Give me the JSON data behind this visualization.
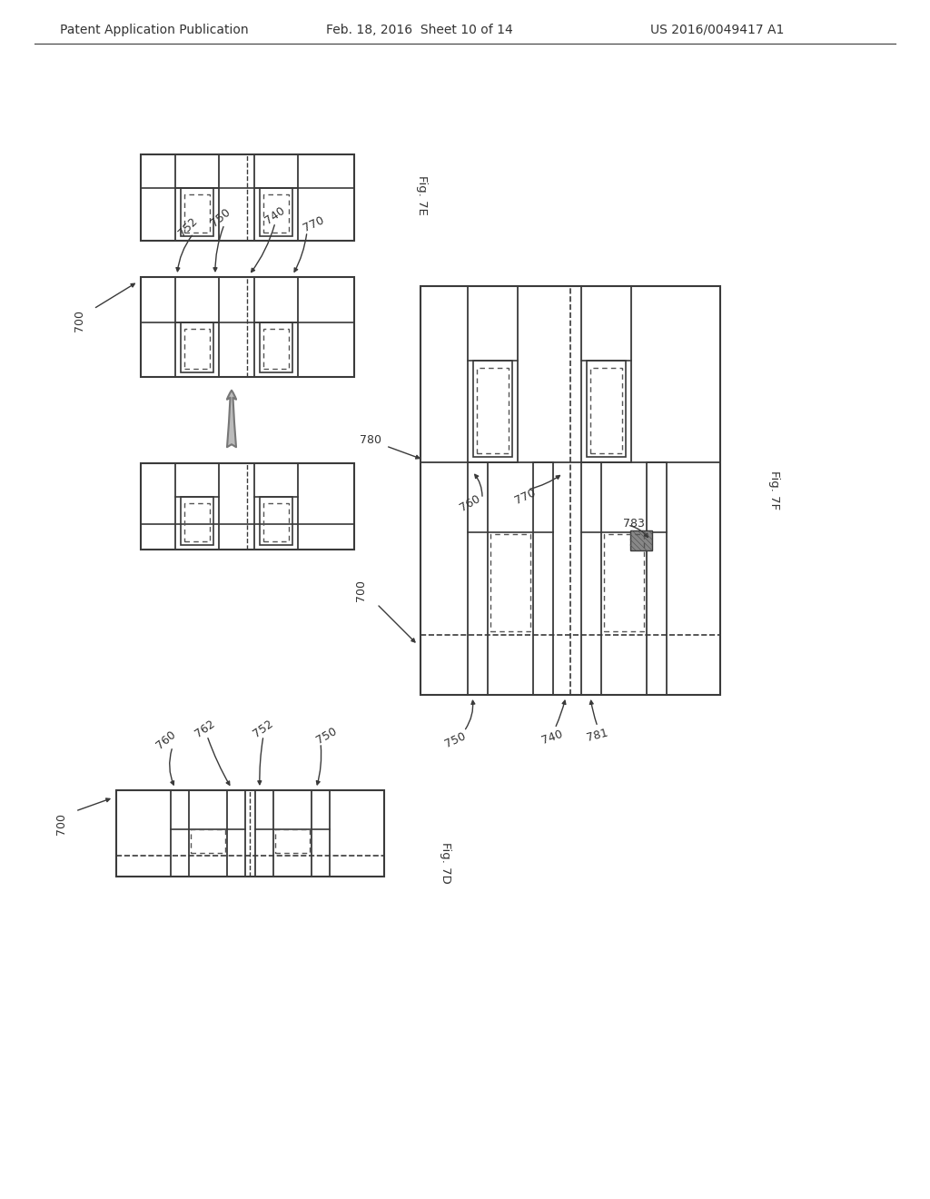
{
  "header_left": "Patent Application Publication",
  "header_middle": "Feb. 18, 2016  Sheet 10 of 14",
  "header_right": "US 2016/0049417 A1",
  "bg_color": "#ffffff",
  "lc": "#3a3a3a",
  "dc": "#555555",
  "fig7e_label": "Fig. 7E",
  "fig7f_label": "Fig. 7F",
  "fig7d_label": "Fig. 7D",
  "label_color": "#333333"
}
